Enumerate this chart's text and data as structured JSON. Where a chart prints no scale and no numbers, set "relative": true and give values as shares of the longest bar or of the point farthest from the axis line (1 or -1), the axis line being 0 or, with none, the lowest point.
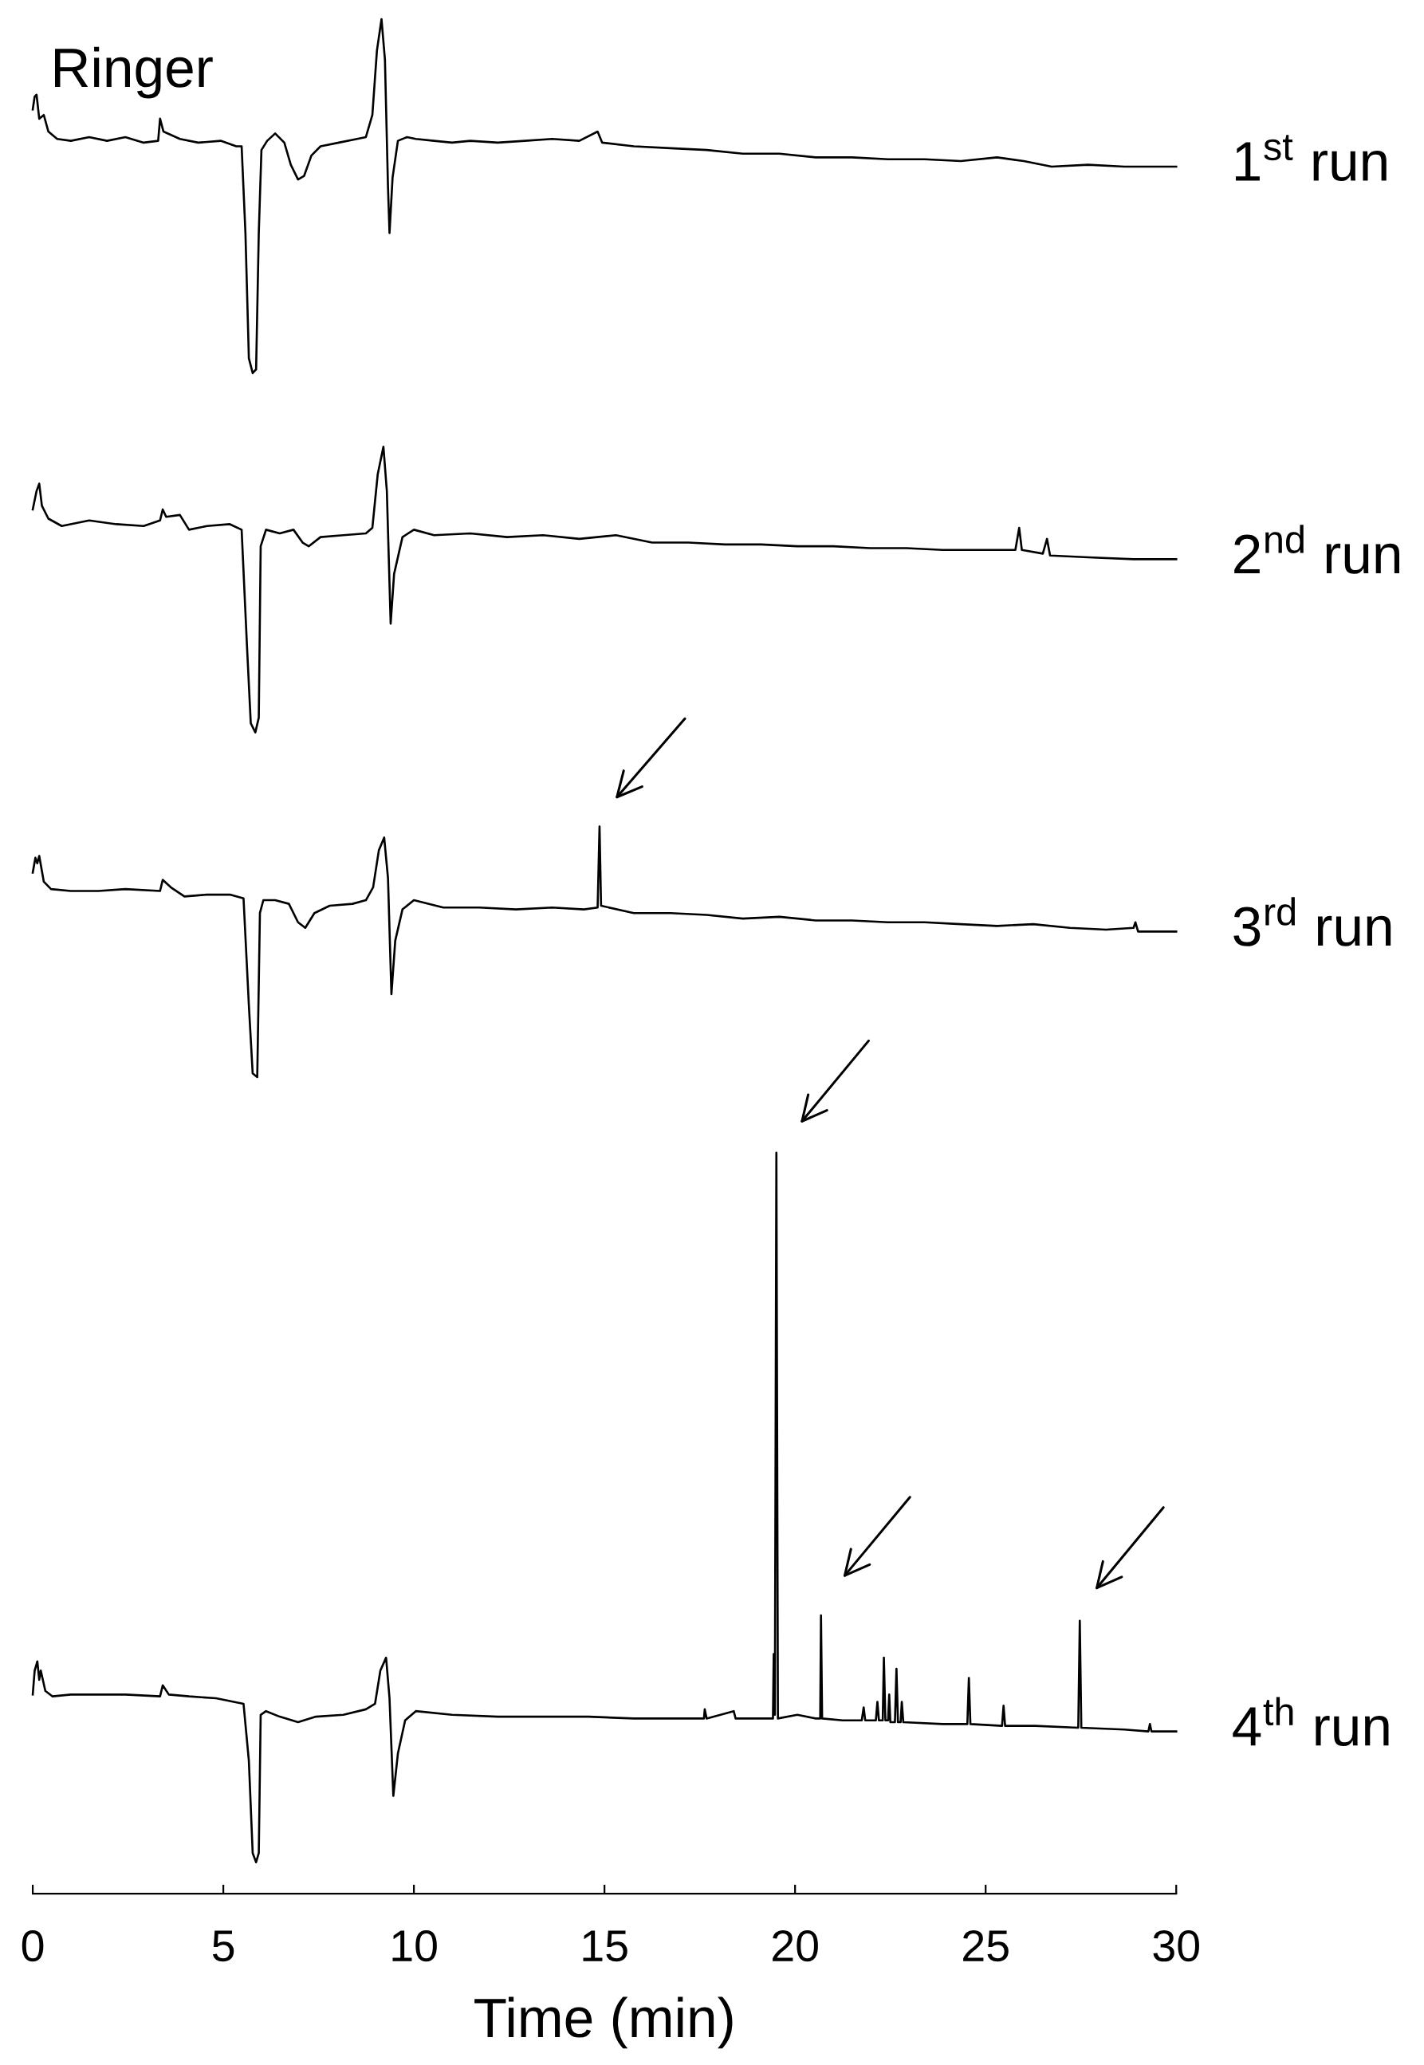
{
  "chart_data": {
    "type": "line",
    "relative": true,
    "xlabel": "Time (min)",
    "xlim": [
      0,
      30
    ],
    "xticks": [
      0,
      5,
      10,
      15,
      20,
      25,
      30
    ],
    "tick_labels": "x",
    "line_style": "solid",
    "annotations": [
      "Ringer"
    ],
    "series": [
      {
        "name": "1$^{st}$ run",
        "color": "#000000",
        "x": [
          0,
          0.05,
          0.1,
          0.17,
          0.29,
          0.41,
          0.64,
          1.0,
          1.48,
          1.95,
          2.43,
          2.91,
          3.29,
          3.34,
          3.43,
          3.86,
          4.34,
          4.93,
          5.34,
          5.48,
          5.58,
          5.67,
          5.77,
          5.86,
          5.93,
          6.0,
          6.15,
          6.36,
          6.6,
          6.77,
          6.96,
          7.12,
          7.31,
          7.55,
          8.03,
          8.51,
          8.74,
          8.91,
          9.03,
          9.15,
          9.24,
          9.32,
          9.36,
          9.44,
          9.58,
          9.82,
          10.05,
          10.53,
          11.0,
          11.48,
          12.2,
          12.91,
          13.63,
          14.34,
          14.82,
          14.94,
          15.77,
          16.73,
          17.68,
          18.63,
          19.59,
          20.54,
          21.49,
          22.44,
          23.4,
          24.35,
          25.3,
          26.0,
          26.73,
          27.69,
          28.64,
          29.35,
          30
        ],
        "values": [
          0.951,
          0.958,
          0.959,
          0.946,
          0.948,
          0.939,
          0.935,
          0.934,
          0.936,
          0.934,
          0.936,
          0.933,
          0.934,
          0.946,
          0.939,
          0.935,
          0.933,
          0.934,
          0.931,
          0.931,
          0.884,
          0.816,
          0.808,
          0.81,
          0.884,
          0.929,
          0.934,
          0.938,
          0.933,
          0.921,
          0.913,
          0.915,
          0.926,
          0.931,
          0.933,
          0.935,
          0.936,
          0.948,
          0.983,
          1.0,
          0.978,
          0.909,
          0.884,
          0.914,
          0.934,
          0.936,
          0.935,
          0.934,
          0.933,
          0.934,
          0.933,
          0.934,
          0.935,
          0.934,
          0.939,
          0.933,
          0.931,
          0.93,
          0.929,
          0.927,
          0.927,
          0.925,
          0.925,
          0.924,
          0.924,
          0.923,
          0.925,
          0.923,
          0.92,
          0.921,
          0.92,
          0.92,
          0.92
        ]
      },
      {
        "name": "2$^{nd}$ run",
        "color": "#000000",
        "x": [
          0,
          0.1,
          0.17,
          0.24,
          0.41,
          0.76,
          1.48,
          2.19,
          2.91,
          3.34,
          3.41,
          3.5,
          3.86,
          4.1,
          4.57,
          5.17,
          5.48,
          5.62,
          5.72,
          5.84,
          5.93,
          5.98,
          6.12,
          6.48,
          6.84,
          7.08,
          7.24,
          7.55,
          8.15,
          8.74,
          8.91,
          9.05,
          9.2,
          9.29,
          9.39,
          9.48,
          9.7,
          10.0,
          10.53,
          11.48,
          12.44,
          13.39,
          14.34,
          15.3,
          16.25,
          17.2,
          18.16,
          19.11,
          20.06,
          21.0,
          21.97,
          22.92,
          23.87,
          24.83,
          25.78,
          25.88,
          25.95,
          26.5,
          26.61,
          26.69,
          27.69,
          28.88,
          30
        ],
        "values": [
          0.734,
          0.744,
          0.748,
          0.736,
          0.729,
          0.725,
          0.728,
          0.726,
          0.725,
          0.728,
          0.734,
          0.73,
          0.731,
          0.723,
          0.725,
          0.726,
          0.723,
          0.66,
          0.618,
          0.613,
          0.621,
          0.714,
          0.723,
          0.721,
          0.723,
          0.716,
          0.714,
          0.719,
          0.72,
          0.721,
          0.724,
          0.753,
          0.768,
          0.744,
          0.672,
          0.699,
          0.719,
          0.723,
          0.72,
          0.721,
          0.719,
          0.72,
          0.718,
          0.72,
          0.716,
          0.716,
          0.715,
          0.715,
          0.714,
          0.714,
          0.713,
          0.713,
          0.712,
          0.712,
          0.712,
          0.724,
          0.712,
          0.71,
          0.718,
          0.709,
          0.708,
          0.707,
          0.707
        ]
      },
      {
        "name": "3$^{rd}$ run",
        "color": "#000000",
        "x": [
          0,
          0.07,
          0.12,
          0.17,
          0.29,
          0.48,
          1.0,
          1.72,
          2.43,
          3.34,
          3.41,
          3.62,
          3.98,
          4.57,
          5.17,
          5.53,
          5.67,
          5.77,
          5.89,
          5.96,
          6.05,
          6.36,
          6.72,
          6.96,
          7.15,
          7.39,
          7.79,
          8.39,
          8.74,
          8.93,
          9.08,
          9.22,
          9.32,
          9.41,
          9.51,
          9.7,
          10.0,
          10.77,
          11.72,
          12.68,
          13.63,
          14.46,
          14.82,
          14.87,
          14.91,
          15.77,
          16.73,
          17.68,
          18.63,
          19.59,
          20.54,
          21.49,
          22.44,
          23.4,
          24.35,
          25.3,
          26.25,
          27.21,
          28.16,
          28.88,
          28.93,
          29.0,
          30
        ],
        "values": [
          0.537,
          0.545,
          0.542,
          0.546,
          0.532,
          0.528,
          0.527,
          0.527,
          0.528,
          0.527,
          0.533,
          0.529,
          0.524,
          0.525,
          0.525,
          0.523,
          0.465,
          0.428,
          0.426,
          0.515,
          0.522,
          0.522,
          0.52,
          0.51,
          0.507,
          0.515,
          0.519,
          0.52,
          0.522,
          0.529,
          0.549,
          0.556,
          0.534,
          0.471,
          0.5,
          0.517,
          0.522,
          0.518,
          0.518,
          0.517,
          0.518,
          0.517,
          0.518,
          0.562,
          0.519,
          0.515,
          0.515,
          0.514,
          0.512,
          0.513,
          0.511,
          0.511,
          0.51,
          0.51,
          0.509,
          0.508,
          0.509,
          0.507,
          0.506,
          0.507,
          0.51,
          0.505,
          0.505
        ]
      },
      {
        "name": "4$^{th}$ run",
        "color": "#000000",
        "x": [
          0,
          0.05,
          0.12,
          0.17,
          0.21,
          0.33,
          0.52,
          1.0,
          1.72,
          2.43,
          3.34,
          3.41,
          3.57,
          4.1,
          4.81,
          5.53,
          5.67,
          5.77,
          5.86,
          5.93,
          5.98,
          6.12,
          6.48,
          6.96,
          7.43,
          8.15,
          8.74,
          8.98,
          9.12,
          9.27,
          9.36,
          9.46,
          9.58,
          9.77,
          10.05,
          11.0,
          12.2,
          13.39,
          14.58,
          15.77,
          16.73,
          17.61,
          17.63,
          17.68,
          18.39,
          18.44,
          19.35,
          19.42,
          19.44,
          19.47,
          19.51,
          19.55,
          20.06,
          20.54,
          20.66,
          20.68,
          20.71,
          21.25,
          21.75,
          21.8,
          21.84,
          22.12,
          22.16,
          22.2,
          22.3,
          22.33,
          22.37,
          22.44,
          22.47,
          22.5,
          22.62,
          22.66,
          22.7,
          22.77,
          22.8,
          22.84,
          23.87,
          24.52,
          24.56,
          24.6,
          25.43,
          25.47,
          25.51,
          26.3,
          27.43,
          27.47,
          27.51,
          28.64,
          29.27,
          29.31,
          29.35,
          30
        ],
        "values": [
          0.091,
          0.104,
          0.109,
          0.099,
          0.104,
          0.093,
          0.09,
          0.091,
          0.091,
          0.091,
          0.09,
          0.096,
          0.091,
          0.09,
          0.089,
          0.086,
          0.055,
          0.005,
          0.0,
          0.005,
          0.08,
          0.082,
          0.079,
          0.076,
          0.079,
          0.08,
          0.083,
          0.086,
          0.104,
          0.111,
          0.089,
          0.036,
          0.059,
          0.077,
          0.082,
          0.08,
          0.079,
          0.079,
          0.079,
          0.078,
          0.078,
          0.078,
          0.083,
          0.078,
          0.082,
          0.078,
          0.078,
          0.078,
          0.113,
          0.08,
          0.385,
          0.078,
          0.08,
          0.078,
          0.078,
          0.134,
          0.078,
          0.077,
          0.077,
          0.084,
          0.077,
          0.077,
          0.087,
          0.077,
          0.077,
          0.111,
          0.077,
          0.077,
          0.091,
          0.076,
          0.076,
          0.105,
          0.076,
          0.076,
          0.087,
          0.076,
          0.075,
          0.075,
          0.1,
          0.075,
          0.074,
          0.085,
          0.074,
          0.074,
          0.073,
          0.131,
          0.073,
          0.072,
          0.071,
          0.075,
          0.071,
          0.071
        ]
      }
    ]
  }
}
